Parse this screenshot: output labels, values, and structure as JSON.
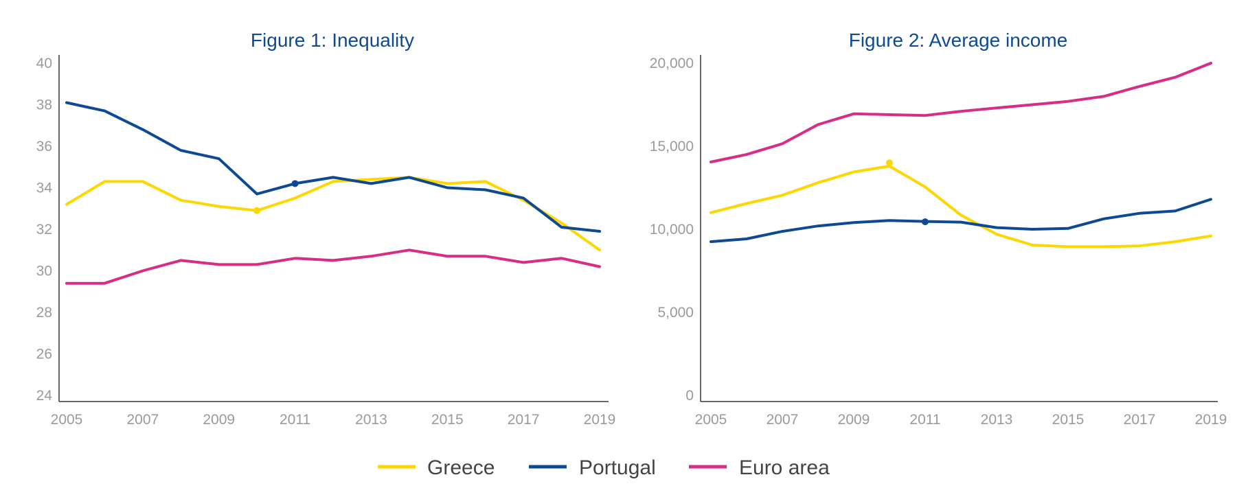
{
  "colors": {
    "greece": "#ffd700",
    "portugal": "#0d4a93",
    "euro_area": "#d92c87",
    "title": "#0d4a93"
  },
  "legend": [
    {
      "key": "greece",
      "label": "Greece"
    },
    {
      "key": "portugal",
      "label": "Portugal"
    },
    {
      "key": "euro_area",
      "label": "Euro area"
    }
  ],
  "chart_data": [
    {
      "type": "line",
      "title": "Figure 1: Inequality",
      "xlabel": "",
      "ylabel": "",
      "x": [
        2005,
        2006,
        2007,
        2008,
        2009,
        2010,
        2011,
        2012,
        2013,
        2014,
        2015,
        2016,
        2017,
        2018,
        2019
      ],
      "x_ticks": [
        "2005",
        "2007",
        "2009",
        "2011",
        "2013",
        "2015",
        "2017",
        "2019"
      ],
      "y_ticks": [
        "40",
        "38",
        "36",
        "34",
        "32",
        "30",
        "28",
        "26",
        "24"
      ],
      "ylim": [
        24,
        40
      ],
      "grid": false,
      "legend_position": "bottom",
      "series": [
        {
          "name": "Greece",
          "color_key": "greece",
          "values": [
            33.2,
            34.3,
            34.3,
            33.4,
            33.1,
            32.9,
            33.5,
            34.3,
            34.4,
            34.5,
            34.2,
            34.3,
            33.4,
            32.3,
            31.0
          ],
          "marker": {
            "x": 2010,
            "y": 32.9
          }
        },
        {
          "name": "Portugal",
          "color_key": "portugal",
          "values": [
            38.1,
            37.7,
            36.8,
            35.8,
            35.4,
            33.7,
            34.2,
            34.5,
            34.2,
            34.5,
            34.0,
            33.9,
            33.5,
            32.1,
            31.9
          ],
          "marker": {
            "x": 2011,
            "y": 34.2
          }
        },
        {
          "name": "Euro area",
          "color_key": "euro_area",
          "values": [
            29.4,
            29.4,
            30.0,
            30.5,
            30.3,
            30.3,
            30.6,
            30.5,
            30.7,
            31.0,
            30.7,
            30.7,
            30.4,
            30.6,
            30.2
          ]
        }
      ]
    },
    {
      "type": "line",
      "title": "Figure 2: Average income",
      "xlabel": "",
      "ylabel": "",
      "x": [
        2005,
        2006,
        2007,
        2008,
        2009,
        2010,
        2011,
        2012,
        2013,
        2014,
        2015,
        2016,
        2017,
        2018,
        2019
      ],
      "x_ticks": [
        "2005",
        "2007",
        "2009",
        "2011",
        "2013",
        "2015",
        "2017",
        "2019"
      ],
      "y_ticks": [
        "20,000",
        "15,000",
        "10,000",
        "5,000",
        "0"
      ],
      "ylim": [
        0,
        20000
      ],
      "grid": false,
      "legend_position": "bottom",
      "series": [
        {
          "name": "Greece",
          "color_key": "greece",
          "values": [
            11000,
            11550,
            12050,
            12800,
            13450,
            13800,
            12550,
            10850,
            9700,
            9050,
            8950,
            8950,
            9000,
            9250,
            9600
          ],
          "marker": {
            "x": 2010,
            "y": 14000
          }
        },
        {
          "name": "Portugal",
          "color_key": "portugal",
          "values": [
            9250,
            9420,
            9870,
            10200,
            10400,
            10530,
            10470,
            10430,
            10100,
            10000,
            10050,
            10630,
            10960,
            11100,
            11800
          ],
          "marker": {
            "x": 2011,
            "y": 10450
          }
        },
        {
          "name": "Euro area",
          "color_key": "euro_area",
          "values": [
            14050,
            14500,
            15150,
            16300,
            16950,
            16900,
            16850,
            17100,
            17300,
            17500,
            17700,
            18000,
            18600,
            19150,
            20000
          ]
        }
      ]
    }
  ]
}
